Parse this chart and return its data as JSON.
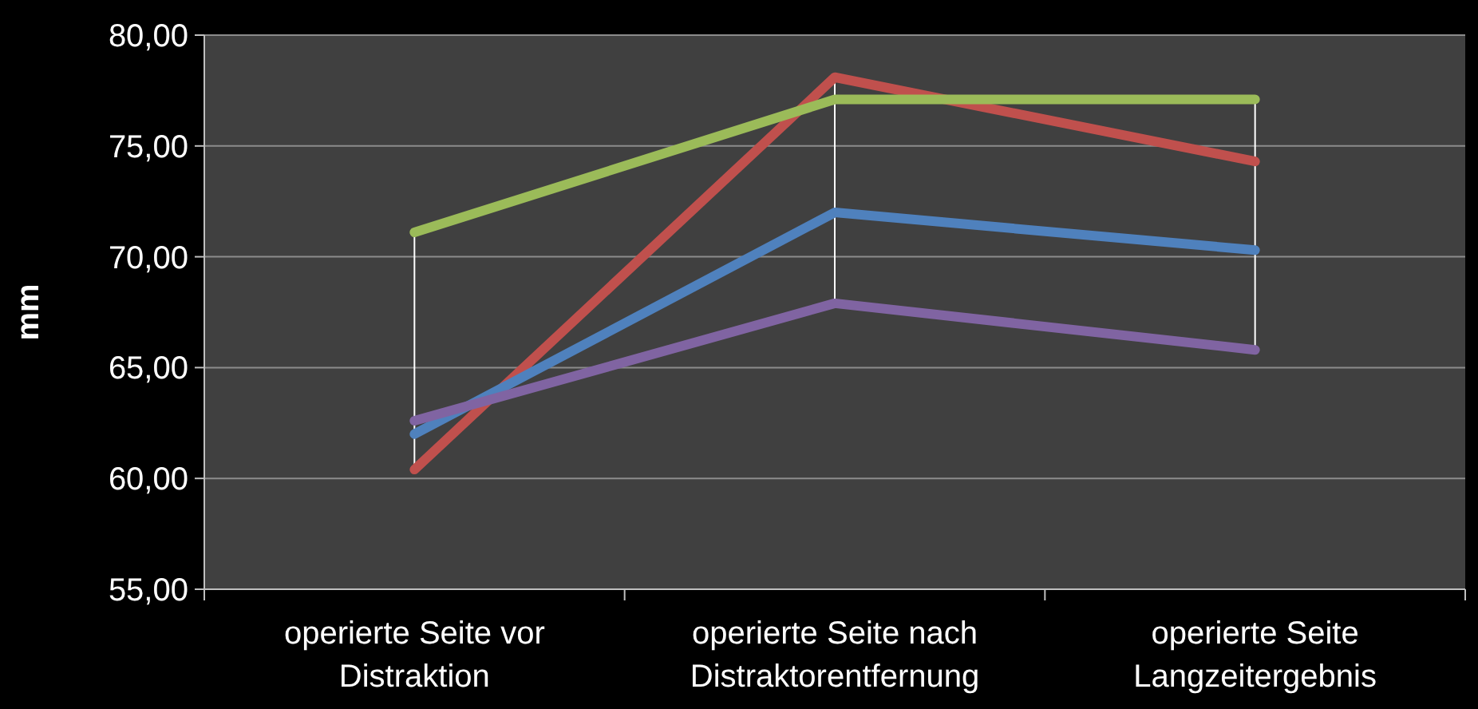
{
  "chart_data": {
    "type": "line",
    "ylabel": "mm",
    "categories": [
      "operierte Seite vor Distraktion",
      "operierte Seite nach Distraktorentfernung",
      "operierte Seite Langzeitergebnis"
    ],
    "series": [
      {
        "color": "#c0504d",
        "values": [
          60.4,
          78.1,
          74.3
        ]
      },
      {
        "color": "#4f81bd",
        "values": [
          62.0,
          72.0,
          70.3
        ]
      },
      {
        "color": "#8064a2",
        "values": [
          62.6,
          67.9,
          65.8
        ]
      },
      {
        "color": "#9bbb59",
        "values": [
          71.1,
          77.1,
          77.1
        ]
      }
    ],
    "ylim": [
      55,
      80
    ],
    "yticks": [
      {
        "value": 55,
        "label": "55,00"
      },
      {
        "value": 60,
        "label": "60,00"
      },
      {
        "value": 65,
        "label": "65,00"
      },
      {
        "value": 70,
        "label": "70,00"
      },
      {
        "value": 75,
        "label": "75,00"
      },
      {
        "value": 80,
        "label": "80,00"
      }
    ],
    "grid": "y",
    "marker": "none",
    "line_style": "solid"
  }
}
